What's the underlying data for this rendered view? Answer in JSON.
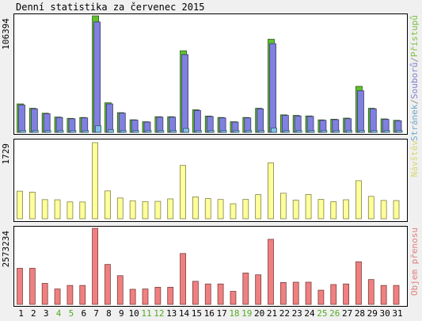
{
  "chart_data": {
    "type": "bar",
    "title": "Denní statistika za červenec 2015",
    "categories": [
      "1",
      "2",
      "3",
      "4",
      "5",
      "6",
      "7",
      "8",
      "9",
      "10",
      "11",
      "12",
      "13",
      "14",
      "15",
      "16",
      "17",
      "18",
      "19",
      "20",
      "21",
      "22",
      "23",
      "24",
      "25",
      "26",
      "27",
      "28",
      "29",
      "30",
      "31"
    ],
    "weekend_days": [
      "4",
      "5",
      "11",
      "12",
      "18",
      "19",
      "25",
      "26"
    ],
    "panels": [
      {
        "ymax_label": "106394",
        "ymax": 106394,
        "legend": [
          {
            "text": "Stránek",
            "color": "#6fa8c8"
          },
          {
            "text": "/",
            "color": "#909090"
          },
          {
            "text": "Souborů",
            "color": "#8080d0"
          },
          {
            "text": "/",
            "color": "#909090"
          },
          {
            "text": "Přístupů",
            "color": "#7cc040"
          }
        ],
        "series": [
          {
            "name": "Přístupů",
            "color": "#60c030",
            "values": [
              26000,
              22000,
              17500,
              14000,
              12800,
              13600,
              106394,
              27000,
              18000,
              11500,
              9700,
              14300,
              14300,
              74500,
              20600,
              14900,
              13600,
              9700,
              13600,
              22000,
              85000,
              16000,
              15500,
              15000,
              11400,
              12000,
              13000,
              42000,
              22000,
              12300,
              11000
            ]
          },
          {
            "name": "Souborů",
            "color": "#8080e0",
            "values": [
              25000,
              21500,
              17000,
              13600,
              12400,
              13200,
              100800,
              26000,
              17600,
              11200,
              9400,
              13900,
              13900,
              71000,
              20000,
              14500,
              13200,
              9400,
              13200,
              21500,
              81000,
              15500,
              15000,
              14600,
              11000,
              11600,
              12500,
              38000,
              21500,
              11900,
              10600
            ]
          },
          {
            "name": "Stránek",
            "color": "#80c0e8",
            "values": [
              1600,
              1600,
              1600,
              1600,
              1600,
              1600,
              6000,
              2400,
              1600,
              1600,
              1600,
              1600,
              1600,
              3600,
              1600,
              1600,
              1600,
              1600,
              1600,
              1600,
              4000,
              1600,
              1600,
              1600,
              1600,
              1600,
              1600,
              1600,
              1600,
              1600,
              1600
            ]
          }
        ]
      },
      {
        "ymax_label": "1729",
        "ymax": 1729,
        "legend": [
          {
            "text": "Návštěv",
            "color": "#d8d870"
          }
        ],
        "series": [
          {
            "name": "Návštěv",
            "color": "#ffff99",
            "values": [
              627,
              605,
              435,
              431,
              383,
              381,
              1729,
              633,
              472,
              410,
              390,
              395,
              451,
              1213,
              497,
              458,
              438,
              341,
              439,
              548,
              1271,
              580,
              423,
              551,
              440,
              388,
              432,
              865,
              509,
              416,
              413
            ]
          }
        ]
      },
      {
        "ymax_label": "2573234",
        "ymax": 2573234,
        "legend": [
          {
            "text": "Objem přenosu",
            "color": "#e08080"
          }
        ],
        "series": [
          {
            "name": "Objem přenosu",
            "color": "#f08080",
            "values": [
              1220000,
              1220000,
              710000,
              520000,
              640000,
              640000,
              2573234,
              1350000,
              970000,
              510000,
              520000,
              580000,
              580000,
              1720000,
              780000,
              690000,
              690000,
              440000,
              1060000,
              1000000,
              2200000,
              740000,
              750000,
              750000,
              480000,
              670000,
              690000,
              1440000,
              840000,
              640000,
              640000
            ]
          }
        ]
      }
    ]
  }
}
